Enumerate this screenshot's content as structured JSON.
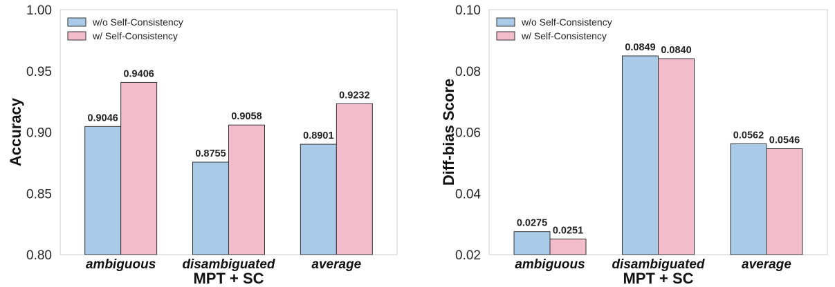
{
  "colors": {
    "series_without": "#a9cbe7",
    "series_with": "#f2bccb",
    "bar_edge": "#333333",
    "frame": "#cccccc"
  },
  "chart_data": [
    {
      "type": "bar",
      "categories": [
        "ambiguous",
        "disambiguated",
        "average"
      ],
      "xlabel": "MPT + SC",
      "ylabel": "Accuracy",
      "ylim": [
        0.8,
        1.0
      ],
      "yticks": [
        "0.80",
        "0.85",
        "0.90",
        "0.95",
        "1.00"
      ],
      "grid": false,
      "legend": "top-left",
      "series": [
        {
          "name": "w/o Self-Consistency",
          "values": [
            0.9046,
            0.8755,
            0.8901
          ],
          "labels": [
            "0.9046",
            "0.8755",
            "0.8901"
          ]
        },
        {
          "name": "w/ Self-Consistency",
          "values": [
            0.9406,
            0.9058,
            0.9232
          ],
          "labels": [
            "0.9406",
            "0.9058",
            "0.9232"
          ]
        }
      ]
    },
    {
      "type": "bar",
      "categories": [
        "ambiguous",
        "disambiguated",
        "average"
      ],
      "xlabel": "MPT + SC",
      "ylabel": "Diff-bias Score",
      "ylim": [
        0.02,
        0.1
      ],
      "yticks": [
        "0.02",
        "0.04",
        "0.06",
        "0.08",
        "0.10"
      ],
      "grid": false,
      "legend": "top-left",
      "series": [
        {
          "name": "w/o Self-Consistency",
          "values": [
            0.0275,
            0.0849,
            0.0562
          ],
          "labels": [
            "0.0275",
            "0.0849",
            "0.0562"
          ]
        },
        {
          "name": "w/ Self-Consistency",
          "values": [
            0.0251,
            0.084,
            0.0546
          ],
          "labels": [
            "0.0251",
            "0.0840",
            "0.0546"
          ]
        }
      ]
    }
  ]
}
